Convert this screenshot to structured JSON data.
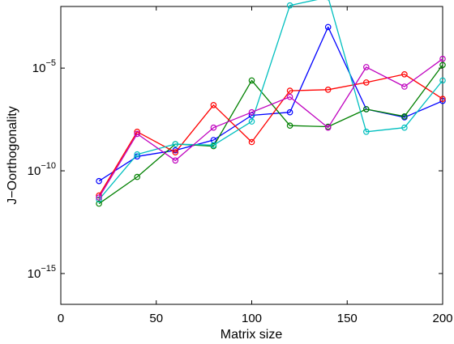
{
  "chart_data": {
    "type": "line",
    "title": "",
    "xlabel": "Matrix size",
    "ylabel": "J−Oorthogonality",
    "xlim": [
      0,
      200
    ],
    "ylim_log10": [
      -16.5,
      -2
    ],
    "y_scale": "log",
    "grid": false,
    "legend": "none",
    "x_ticks": [
      0,
      50,
      100,
      150,
      200
    ],
    "x_tick_labels": [
      "0",
      "50",
      "100",
      "150",
      "200"
    ],
    "y_ticks_log10": [
      -15,
      -10,
      -5
    ],
    "y_tick_labels": [
      {
        "base": "10",
        "exp": "−15"
      },
      {
        "base": "10",
        "exp": "−10"
      },
      {
        "base": "10",
        "exp": "−5"
      }
    ],
    "x": [
      20,
      40,
      60,
      80,
      100,
      120,
      140,
      160,
      180,
      200
    ],
    "series": [
      {
        "color": "#0000ff",
        "log10_values": [
          -10.5,
          -9.3,
          -9.0,
          -8.5,
          -7.3,
          -7.15,
          -3.0,
          -7.0,
          -7.4,
          -6.6
        ]
      },
      {
        "color": "#008000",
        "log10_values": [
          -11.6,
          -10.3,
          -8.7,
          -8.8,
          -5.6,
          -7.8,
          -7.85,
          -7.0,
          -7.35,
          -4.85
        ]
      },
      {
        "color": "#ff0000",
        "log10_values": [
          -11.2,
          -8.1,
          -9.1,
          -6.8,
          -8.6,
          -6.1,
          -6.05,
          -5.7,
          -5.3,
          -6.5
        ]
      },
      {
        "color": "#00bfbf",
        "log10_values": [
          -11.4,
          -9.2,
          -8.7,
          -8.75,
          -7.6,
          -1.95,
          -1.55,
          -8.1,
          -7.9,
          -5.6
        ]
      },
      {
        "color": "#bf00bf",
        "log10_values": [
          -11.3,
          -8.2,
          -9.5,
          -7.9,
          -7.15,
          -6.4,
          -7.9,
          -4.95,
          -5.9,
          -4.55
        ]
      }
    ]
  }
}
